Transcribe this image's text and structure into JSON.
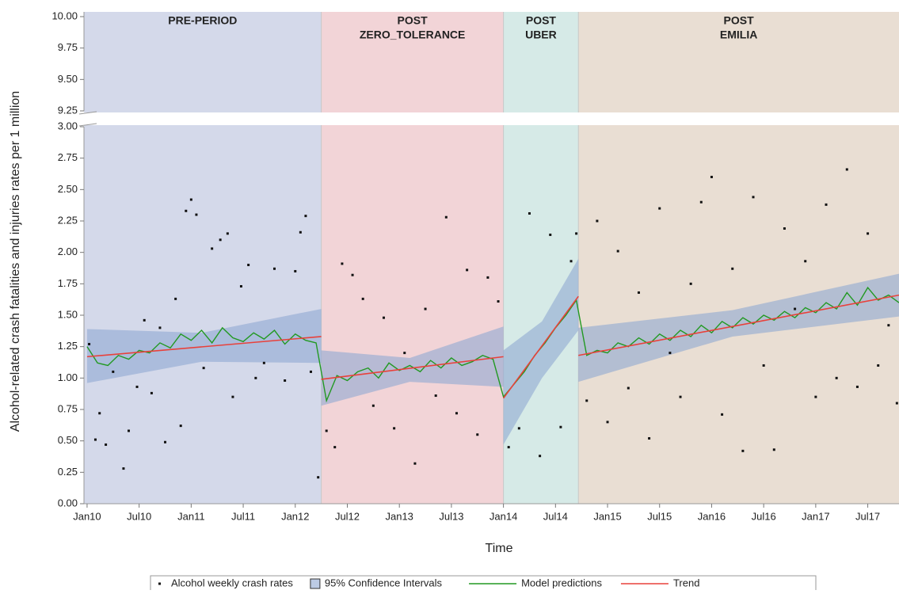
{
  "chart_data": {
    "type": "line",
    "y_label": "Alcohol-related crash fatalities and injuries rates per 1 million",
    "x_label": "Time",
    "xlim": [
      2009.97,
      2017.8
    ],
    "xticks": [
      {
        "value": 2010,
        "label": "Jan10"
      },
      {
        "value": 2010.5,
        "label": "Jul10"
      },
      {
        "value": 2011,
        "label": "Jan11"
      },
      {
        "value": 2011.5,
        "label": "Jul11"
      },
      {
        "value": 2012,
        "label": "Jan12"
      },
      {
        "value": 2012.5,
        "label": "Jul12"
      },
      {
        "value": 2013,
        "label": "Jan13"
      },
      {
        "value": 2013.5,
        "label": "Jul13"
      },
      {
        "value": 2014,
        "label": "Jan14"
      },
      {
        "value": 2014.5,
        "label": "Jul14"
      },
      {
        "value": 2015,
        "label": "Jan15"
      },
      {
        "value": 2015.5,
        "label": "Jul15"
      },
      {
        "value": 2016,
        "label": "Jan16"
      },
      {
        "value": 2016.5,
        "label": "Jul16"
      },
      {
        "value": 2017,
        "label": "Jan17"
      },
      {
        "value": 2017.5,
        "label": "Jul17"
      }
    ],
    "ylim": [
      0,
      10
    ],
    "y_break": [
      3,
      9.25
    ],
    "yticks": [
      {
        "value": 0,
        "label": "0.00"
      },
      {
        "value": 0.25,
        "label": "0.25"
      },
      {
        "value": 0.5,
        "label": "0.50"
      },
      {
        "value": 0.75,
        "label": "0.75"
      },
      {
        "value": 1,
        "label": "1.00"
      },
      {
        "value": 1.25,
        "label": "1.25"
      },
      {
        "value": 1.5,
        "label": "1.50"
      },
      {
        "value": 1.75,
        "label": "1.75"
      },
      {
        "value": 2,
        "label": "2.00"
      },
      {
        "value": 2.25,
        "label": "2.25"
      },
      {
        "value": 2.5,
        "label": "2.50"
      },
      {
        "value": 2.75,
        "label": "2.75"
      },
      {
        "value": 3,
        "label": "3.00"
      },
      {
        "value": 9.25,
        "label": "9.25"
      },
      {
        "value": 9.5,
        "label": "9.50"
      },
      {
        "value": 9.75,
        "label": "9.75"
      },
      {
        "value": 10,
        "label": "10.00"
      }
    ],
    "periods": [
      {
        "lines": [
          "PRE-PERIOD"
        ],
        "start": 2009.97,
        "end": 2012.25,
        "color": "#d4d9ea"
      },
      {
        "lines": [
          "POST",
          "ZERO_TOLERANCE"
        ],
        "start": 2012.25,
        "end": 2014.0,
        "color": "#f2d4d7"
      },
      {
        "lines": [
          "POST",
          "UBER"
        ],
        "start": 2014.0,
        "end": 2014.72,
        "color": "#d6eae7"
      },
      {
        "lines": [
          "POST",
          "EMILIA"
        ],
        "start": 2014.72,
        "end": 2017.8,
        "color": "#e9ded3"
      }
    ],
    "series": [
      {
        "name": "Alcohol weekly crash rates",
        "type": "scatter",
        "color": "#111111",
        "x": [
          2010.02,
          2010.08,
          2010.12,
          2010.18,
          2010.25,
          2010.35,
          2010.4,
          2010.48,
          2010.55,
          2010.62,
          2010.7,
          2010.75,
          2010.85,
          2010.9,
          2010.95,
          2011.0,
          2011.05,
          2011.12,
          2011.2,
          2011.28,
          2011.35,
          2011.4,
          2011.48,
          2011.55,
          2011.62,
          2011.7,
          2011.8,
          2011.9,
          2012.0,
          2012.05,
          2012.1,
          2012.15,
          2012.22,
          2012.3,
          2012.38,
          2012.45,
          2012.55,
          2012.65,
          2012.75,
          2012.85,
          2012.95,
          2013.05,
          2013.15,
          2013.25,
          2013.35,
          2013.45,
          2013.55,
          2013.65,
          2013.75,
          2013.85,
          2013.95,
          2014.05,
          2014.15,
          2014.25,
          2014.35,
          2014.45,
          2014.55,
          2014.65,
          2014.7,
          2014.8,
          2014.9,
          2015.0,
          2015.1,
          2015.2,
          2015.3,
          2015.4,
          2015.5,
          2015.6,
          2015.7,
          2015.8,
          2015.9,
          2016.0,
          2016.1,
          2016.2,
          2016.3,
          2016.4,
          2016.5,
          2016.6,
          2016.7,
          2016.8,
          2016.9,
          2017.0,
          2017.1,
          2017.2,
          2017.3,
          2017.4,
          2017.5,
          2017.6,
          2017.7,
          2017.78
        ],
        "values": [
          1.27,
          0.51,
          0.72,
          0.47,
          1.05,
          0.28,
          0.58,
          0.93,
          1.46,
          0.88,
          1.4,
          0.49,
          1.63,
          0.62,
          2.33,
          2.42,
          2.3,
          1.08,
          2.03,
          2.1,
          2.15,
          0.85,
          1.73,
          1.9,
          1.0,
          1.12,
          1.87,
          0.98,
          1.85,
          2.16,
          2.29,
          1.05,
          0.21,
          0.58,
          0.45,
          1.91,
          1.82,
          1.63,
          0.78,
          1.48,
          0.6,
          1.2,
          0.32,
          1.55,
          0.86,
          2.28,
          0.72,
          1.86,
          0.55,
          1.8,
          1.61,
          0.45,
          0.6,
          2.31,
          0.38,
          2.14,
          0.61,
          1.93,
          2.15,
          0.82,
          2.25,
          0.65,
          2.01,
          0.92,
          1.68,
          0.52,
          2.35,
          1.2,
          0.85,
          1.75,
          2.4,
          2.6,
          0.71,
          1.87,
          0.42,
          2.44,
          1.1,
          0.43,
          2.19,
          1.55,
          1.93,
          0.85,
          2.38,
          1.0,
          2.66,
          0.93,
          2.15,
          1.1,
          1.42,
          0.8
        ]
      },
      {
        "name": "95% Confidence Intervals",
        "type": "band",
        "color": "#8fa8d2",
        "segments": [
          {
            "x": [
              2010.0,
              2011.1,
              2012.25
            ],
            "lower": [
              0.96,
              1.13,
              1.12
            ],
            "upper": [
              1.39,
              1.36,
              1.55
            ]
          },
          {
            "x": [
              2012.25,
              2013.1,
              2014.0
            ],
            "lower": [
              0.78,
              0.97,
              0.93
            ],
            "upper": [
              1.22,
              1.16,
              1.41
            ]
          },
          {
            "x": [
              2014.0,
              2014.37,
              2014.72
            ],
            "lower": [
              0.47,
              1.0,
              1.38
            ],
            "upper": [
              1.22,
              1.45,
              1.95
            ]
          },
          {
            "x": [
              2014.72,
              2016.2,
              2017.8
            ],
            "lower": [
              0.97,
              1.33,
              1.49
            ],
            "upper": [
              1.4,
              1.54,
              1.83
            ]
          }
        ]
      },
      {
        "name": "Model predictions",
        "type": "line",
        "color": "#229922",
        "x": [
          2010.0,
          2010.1,
          2010.2,
          2010.3,
          2010.4,
          2010.5,
          2010.6,
          2010.7,
          2010.8,
          2010.9,
          2011.0,
          2011.1,
          2011.2,
          2011.3,
          2011.4,
          2011.5,
          2011.6,
          2011.7,
          2011.8,
          2011.9,
          2012.0,
          2012.1,
          2012.2,
          2012.3,
          2012.4,
          2012.5,
          2012.6,
          2012.7,
          2012.8,
          2012.9,
          2013.0,
          2013.1,
          2013.2,
          2013.3,
          2013.4,
          2013.5,
          2013.6,
          2013.7,
          2013.8,
          2013.9,
          2014.0,
          2014.1,
          2014.2,
          2014.3,
          2014.4,
          2014.5,
          2014.6,
          2014.7,
          2014.8,
          2014.9,
          2015.0,
          2015.1,
          2015.2,
          2015.3,
          2015.4,
          2015.5,
          2015.6,
          2015.7,
          2015.8,
          2015.9,
          2016.0,
          2016.1,
          2016.2,
          2016.3,
          2016.4,
          2016.5,
          2016.6,
          2016.7,
          2016.8,
          2016.9,
          2017.0,
          2017.1,
          2017.2,
          2017.3,
          2017.4,
          2017.5,
          2017.6,
          2017.7,
          2017.8
        ],
        "values": [
          1.25,
          1.12,
          1.1,
          1.18,
          1.15,
          1.22,
          1.2,
          1.28,
          1.24,
          1.35,
          1.3,
          1.38,
          1.28,
          1.4,
          1.32,
          1.29,
          1.36,
          1.31,
          1.38,
          1.27,
          1.35,
          1.3,
          1.28,
          0.82,
          1.02,
          0.98,
          1.05,
          1.08,
          1.0,
          1.12,
          1.06,
          1.1,
          1.05,
          1.14,
          1.08,
          1.16,
          1.1,
          1.13,
          1.18,
          1.15,
          0.85,
          0.95,
          1.05,
          1.18,
          1.28,
          1.4,
          1.5,
          1.62,
          1.18,
          1.22,
          1.2,
          1.28,
          1.25,
          1.32,
          1.27,
          1.35,
          1.3,
          1.38,
          1.33,
          1.42,
          1.36,
          1.45,
          1.4,
          1.48,
          1.43,
          1.5,
          1.46,
          1.53,
          1.48,
          1.56,
          1.52,
          1.6,
          1.55,
          1.68,
          1.58,
          1.72,
          1.62,
          1.66,
          1.6
        ]
      },
      {
        "name": "Trend",
        "type": "segments",
        "color": "#e8413b",
        "segments": [
          {
            "x": [
              2010.0,
              2012.25
            ],
            "values": [
              1.17,
              1.33
            ]
          },
          {
            "x": [
              2012.25,
              2014.0
            ],
            "values": [
              0.99,
              1.17
            ]
          },
          {
            "x": [
              2014.0,
              2014.72
            ],
            "values": [
              0.84,
              1.65
            ]
          },
          {
            "x": [
              2014.72,
              2017.8
            ],
            "values": [
              1.18,
              1.66
            ]
          }
        ]
      }
    ]
  }
}
